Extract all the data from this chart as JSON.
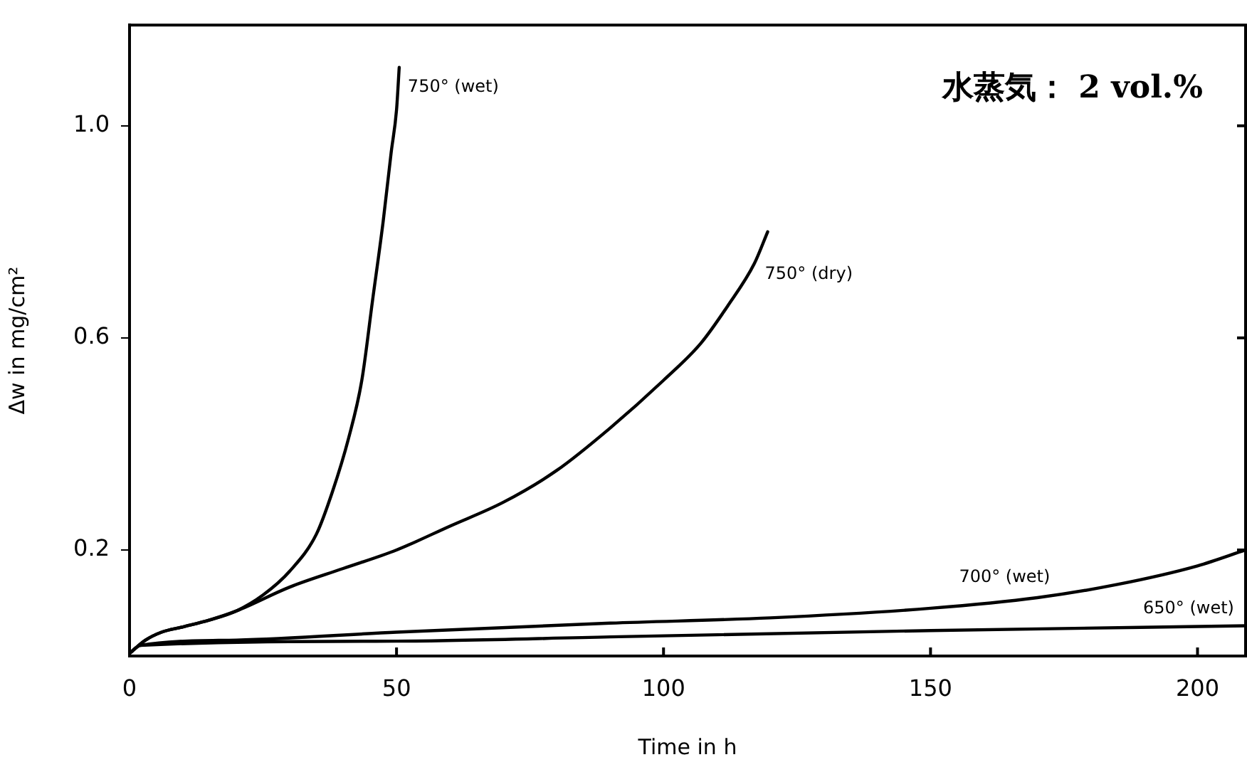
{
  "chart_data": {
    "type": "line",
    "xlabel": "Time in h",
    "ylabel": "Δw in mg/cm²",
    "annotations": [
      "水蒸気： 2 vol.%"
    ],
    "xlim": [
      0,
      209
    ],
    "xticks": [
      0,
      50,
      100,
      150,
      200
    ],
    "ylim": [
      0,
      1.19
    ],
    "yticks": [
      0.2,
      0.6,
      {
        "value": 1.0,
        "label": "1.0"
      }
    ],
    "grid": false,
    "legend": false,
    "marker": "none",
    "line_style": "solid",
    "series": [
      {
        "name": "750° (wet)",
        "color": "#000000",
        "x": [
          0,
          3,
          6,
          10,
          15,
          20,
          25,
          30,
          35,
          38,
          41,
          43.5,
          45.5,
          47.5,
          49,
          50,
          50.5
        ],
        "values": [
          0.005,
          0.03,
          0.045,
          0.055,
          0.068,
          0.085,
          0.115,
          0.16,
          0.23,
          0.31,
          0.41,
          0.52,
          0.67,
          0.82,
          0.95,
          1.03,
          1.11
        ]
      },
      {
        "name": "750° (dry)",
        "color": "#000000",
        "x": [
          0,
          3,
          6,
          10,
          15,
          20,
          30,
          40,
          50,
          60,
          70,
          80,
          90,
          100,
          107,
          112,
          117,
          119.5
        ],
        "values": [
          0.005,
          0.03,
          0.045,
          0.055,
          0.068,
          0.085,
          0.13,
          0.165,
          0.2,
          0.245,
          0.29,
          0.35,
          0.43,
          0.52,
          0.59,
          0.66,
          0.74,
          0.8
        ]
      },
      {
        "name": "700° (wet)",
        "color": "#000000",
        "x": [
          0,
          2,
          20,
          50,
          90,
          120,
          150,
          170,
          185,
          200,
          209
        ],
        "values": [
          0.005,
          0.02,
          0.03,
          0.045,
          0.062,
          0.072,
          0.09,
          0.11,
          0.135,
          0.17,
          0.2
        ]
      },
      {
        "name": "650° (wet)",
        "color": "#000000",
        "x": [
          0,
          2,
          50,
          90,
          150,
          209
        ],
        "values": [
          0.005,
          0.02,
          0.028,
          0.036,
          0.048,
          0.057
        ]
      }
    ]
  }
}
